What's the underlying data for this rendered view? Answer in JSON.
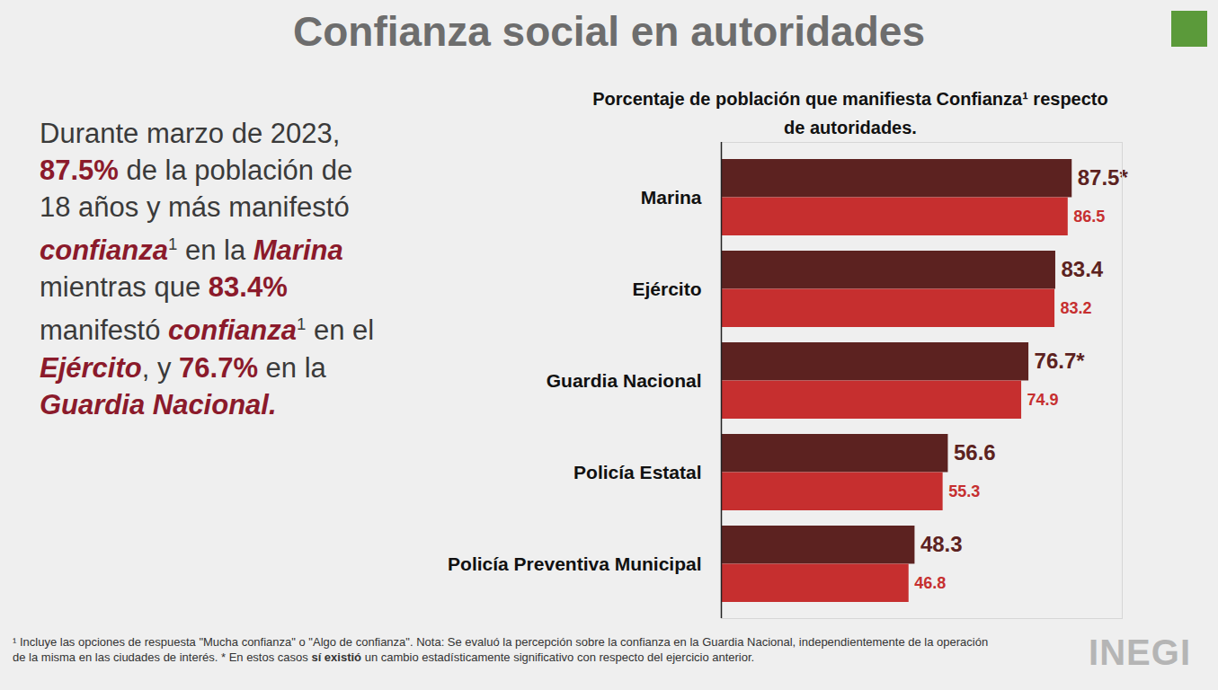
{
  "header": {
    "title": "Confianza social en autoridades"
  },
  "summary": [
    {
      "text": "Durante marzo de 2023, ",
      "style": "plain"
    },
    {
      "text": "87.5%",
      "style": "bold"
    },
    {
      "text": " de la población de 18 años y más manifestó ",
      "style": "plain"
    },
    {
      "text": "confianza",
      "style": "bold-italic"
    },
    {
      "text": "1",
      "style": "sup"
    },
    {
      "text": " en la ",
      "style": "plain"
    },
    {
      "text": "Marina",
      "style": "bold-italic"
    },
    {
      "text": " mientras que ",
      "style": "plain"
    },
    {
      "text": "83.4%",
      "style": "bold"
    },
    {
      "text": " manifestó ",
      "style": "plain"
    },
    {
      "text": "confianza",
      "style": "bold-italic"
    },
    {
      "text": "1",
      "style": "sup"
    },
    {
      "text": " en el ",
      "style": "plain"
    },
    {
      "text": "Ejército",
      "style": "bold-italic"
    },
    {
      "text": ", y ",
      "style": "plain"
    },
    {
      "text": "76.7%",
      "style": "bold"
    },
    {
      "text": " en la ",
      "style": "plain"
    },
    {
      "text": "Guardia Nacional.",
      "style": "bold-italic"
    }
  ],
  "chart_data": {
    "type": "bar",
    "orientation": "horizontal",
    "title": "Porcentaje de población que manifiesta Confianza¹ respecto de autoridades.",
    "categories": [
      "Marina",
      "Ejército",
      "Guardia Nacional",
      "Policía Estatal",
      "Policía Preventiva Municipal"
    ],
    "series": [
      {
        "color": "#5c2220",
        "values": [
          87.5,
          83.4,
          76.7,
          56.6,
          48.3
        ],
        "value_labels": [
          "87.5*",
          "83.4",
          "76.7*",
          "56.6",
          "48.3"
        ]
      },
      {
        "color": "#c62f2f",
        "values": [
          86.5,
          83.2,
          74.9,
          55.3,
          46.8
        ]
      }
    ],
    "xlim": [
      0,
      100
    ],
    "tick_labels": "y",
    "data_labels": true,
    "grid": false
  },
  "footnote": [
    {
      "text": "¹ Incluye las opciones de respuesta \"Mucha confianza\" o \"Algo de confianza\". Nota: Se evaluó la percepción sobre la confianza en la Guardia Nacional, independientemente de la operación de la misma en las ciudades de interés. * En estos casos ",
      "style": "plain"
    },
    {
      "text": "sí existió",
      "style": "bold"
    },
    {
      "text": " un cambio estadísticamente significativo con respecto del ejercicio anterior.",
      "style": "plain"
    }
  ],
  "logo": "INEGI"
}
